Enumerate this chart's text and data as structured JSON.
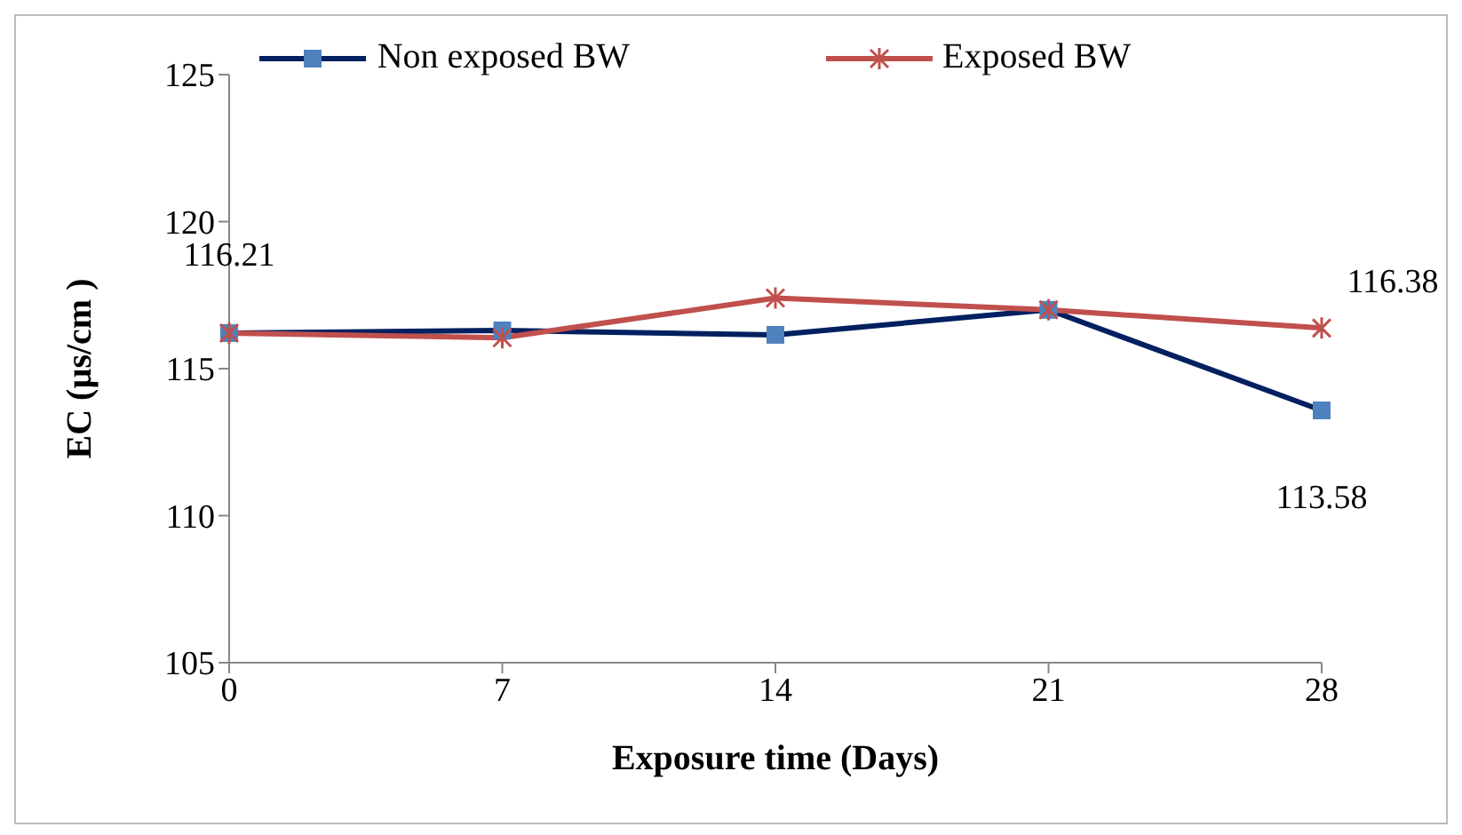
{
  "chart_data": {
    "type": "line",
    "xlabel": "Exposure time (Days)",
    "ylabel": "EC (µs/cm )",
    "categories": [
      "0",
      "7",
      "14",
      "21",
      "28"
    ],
    "ylim": [
      105,
      125
    ],
    "yticks": [
      105,
      110,
      115,
      120,
      125
    ],
    "grid": false,
    "legend": "top",
    "series": [
      {
        "name": "Non exposed BW",
        "color": "#002060",
        "marker": "square",
        "colors": [
          "#4f81bd",
          "#4f81bd",
          "#4f81bd",
          "#4f81bd",
          "#4f81bd"
        ],
        "values": [
          116.21,
          116.3,
          116.15,
          117.0,
          113.58
        ],
        "value_labels": [
          "116.21",
          null,
          null,
          null,
          "113.58"
        ]
      },
      {
        "name": "Exposed BW",
        "color": "#c0504d",
        "marker": "cross",
        "values": [
          116.21,
          116.05,
          117.4,
          117.0,
          116.38
        ],
        "value_labels": [
          null,
          null,
          null,
          null,
          "116.38"
        ]
      }
    ]
  }
}
